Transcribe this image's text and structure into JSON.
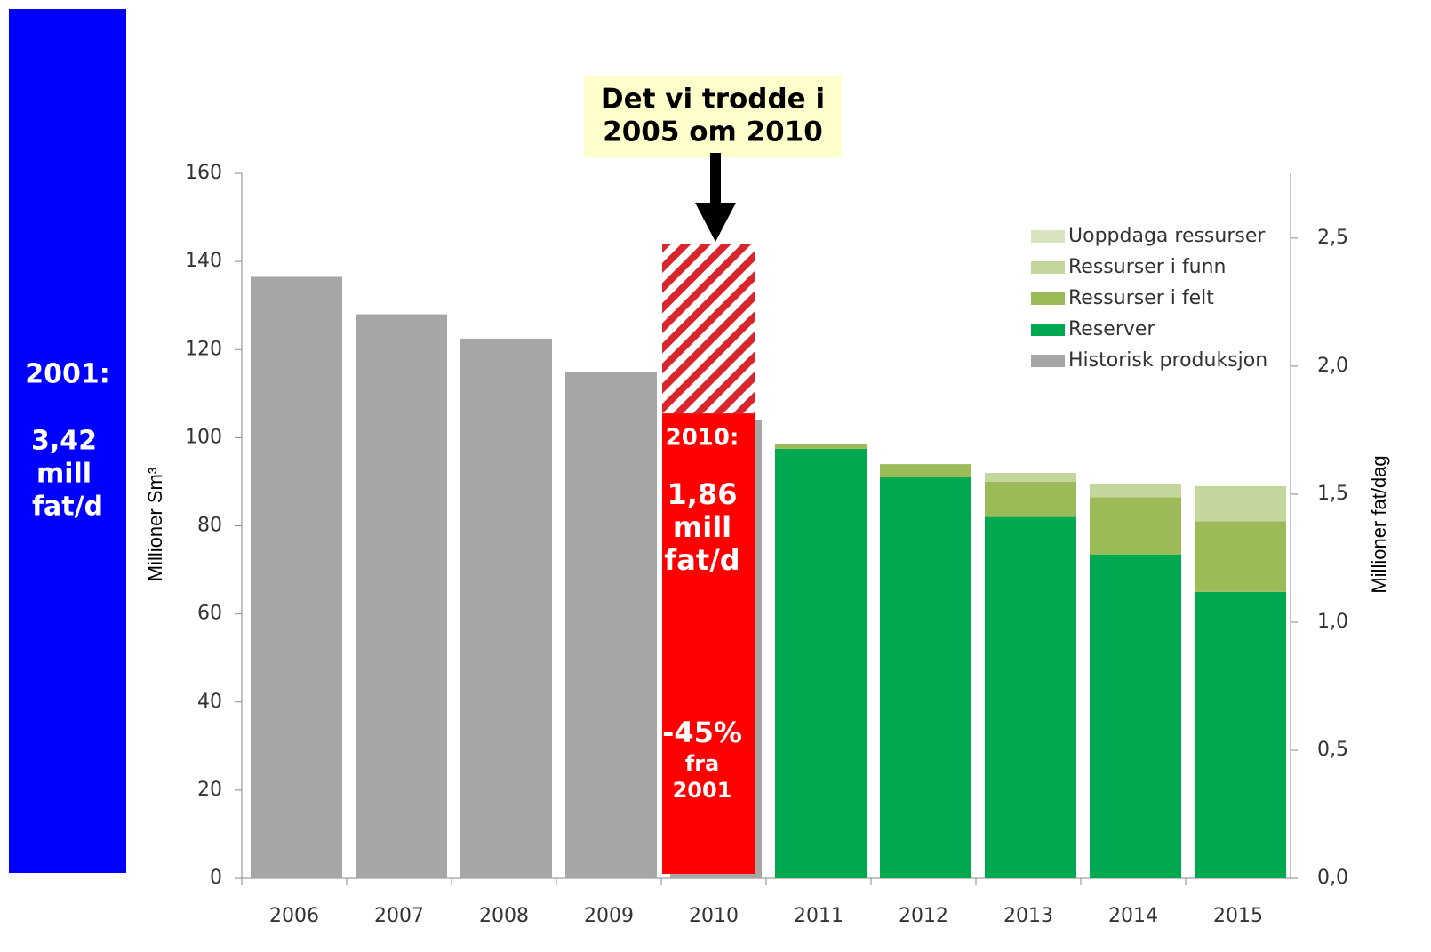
{
  "chart_data": {
    "type": "stacked_bar",
    "categories": [
      "2006",
      "2007",
      "2008",
      "2009",
      "2010",
      "2011",
      "2012",
      "2013",
      "2014",
      "2015"
    ],
    "series": [
      {
        "name": "Historisk produksjon",
        "color": "#a6a6a6",
        "values": [
          136.5,
          128,
          122.5,
          115,
          104,
          null,
          null,
          null,
          null,
          null
        ]
      },
      {
        "name": "Reserver",
        "color": "#00a84f",
        "values": [
          null,
          null,
          null,
          null,
          null,
          97.5,
          91,
          82,
          73.5,
          65
        ]
      },
      {
        "name": "Ressurser i felt",
        "color": "#9bbb59",
        "values": [
          null,
          null,
          null,
          null,
          null,
          1,
          3,
          8,
          13,
          16
        ]
      },
      {
        "name": "Ressurser i funn",
        "color": "#c3d69b",
        "values": [
          null,
          null,
          null,
          null,
          null,
          null,
          null,
          2,
          3,
          8
        ]
      },
      {
        "name": "Uoppdaga ressurser",
        "color": "#d7e4bd",
        "values": [
          null,
          null,
          null,
          null,
          null,
          null,
          null,
          null,
          null,
          null
        ]
      }
    ],
    "ylim": [
      0,
      160
    ],
    "yticks": [
      0,
      20,
      40,
      60,
      80,
      100,
      120,
      140,
      160
    ],
    "y2lim": [
      0,
      2.753
    ],
    "y2ticks": [
      {
        "value": 0,
        "label": "0,0"
      },
      {
        "value": 0.5,
        "label": "0,5"
      },
      {
        "value": 1,
        "label": "1,0"
      },
      {
        "value": 1.5,
        "label": "1,5"
      },
      {
        "value": 2,
        "label": "2,0"
      },
      {
        "value": 2.5,
        "label": "2,5"
      }
    ],
    "y_label": "Millioner Sm³",
    "y2_label": "Millioner fat/dag",
    "forecast": {
      "color": "#ff0000",
      "range": [
        105.5,
        143.9
      ]
    },
    "annotations": {
      "left_box": [
        "2001:",
        "3,42",
        "mill",
        "fat/d"
      ],
      "red_box": [
        "2010:",
        "1,86",
        "mill",
        "fat/d",
        "-45%",
        "fra",
        "2001"
      ],
      "callout": [
        "Det vi trodde i",
        "2005 om 2010"
      ]
    }
  }
}
